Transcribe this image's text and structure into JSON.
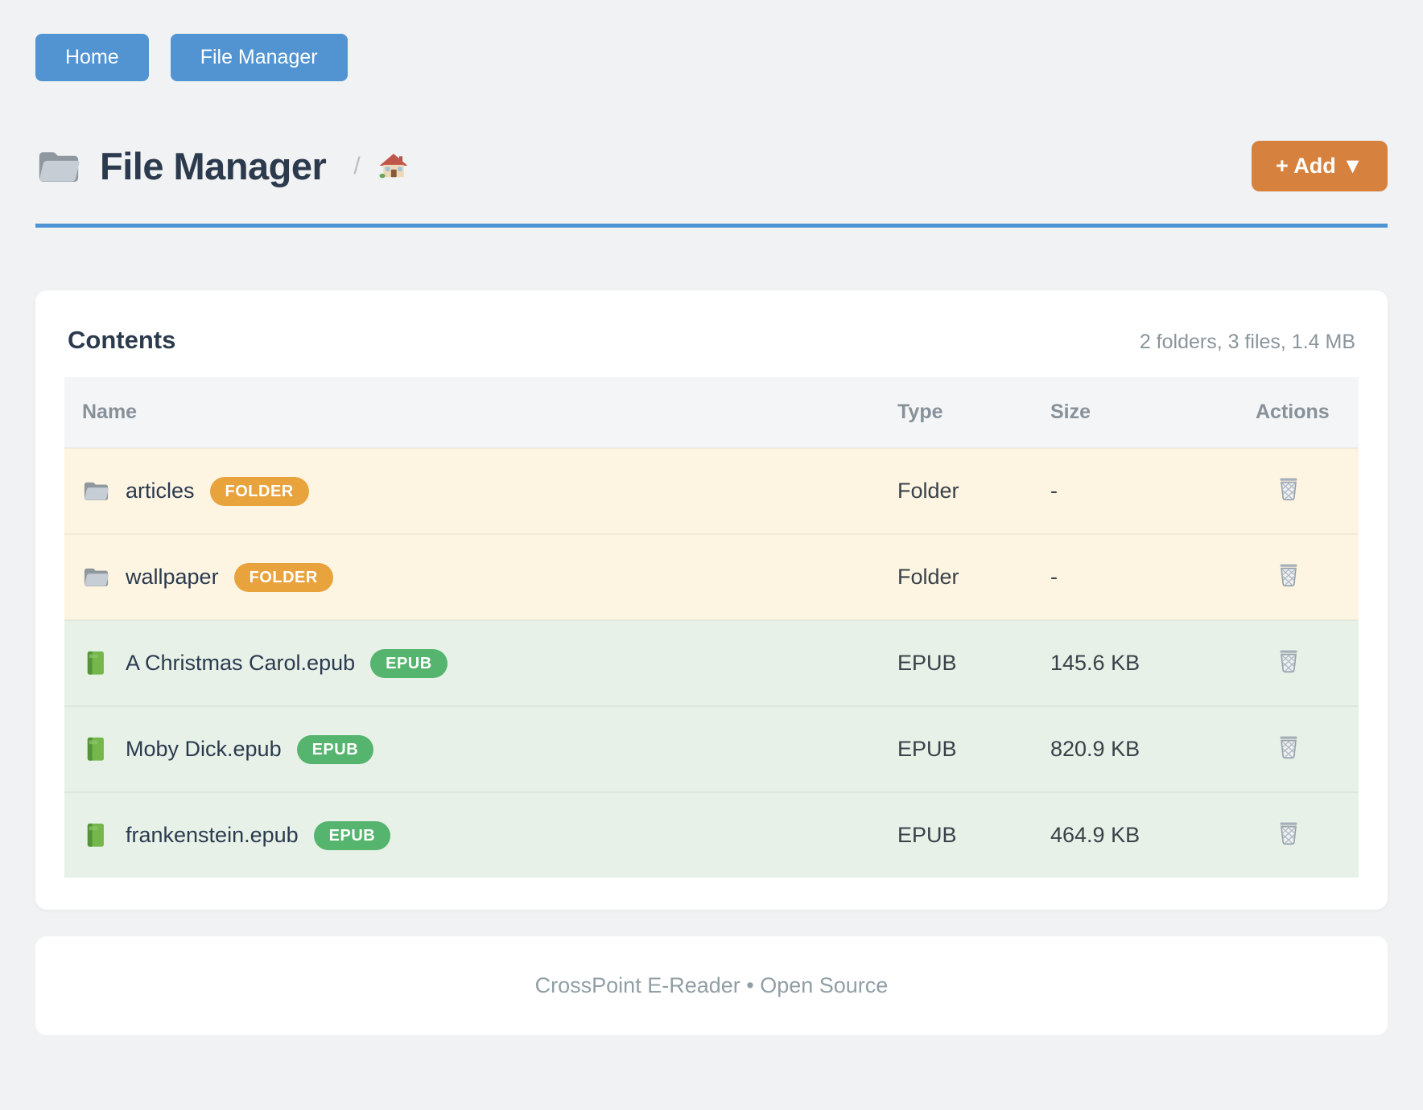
{
  "nav": {
    "buttons": [
      {
        "label": "Home"
      },
      {
        "label": "File Manager"
      }
    ]
  },
  "header": {
    "icon": "folder",
    "title": "File Manager",
    "breadcrumb": {
      "separator": "/",
      "home_icon": "house"
    },
    "add_button": {
      "label": "+ Add ▼"
    }
  },
  "contents": {
    "heading": "Contents",
    "summary": "2 folders, 3 files, 1.4 MB",
    "columns": [
      "Name",
      "Type",
      "Size",
      "Actions"
    ],
    "action_icon": "trash",
    "rows": [
      {
        "icon": "folder",
        "kind": "folder",
        "name": "articles",
        "badge": "FOLDER",
        "type": "Folder",
        "size": "-"
      },
      {
        "icon": "folder",
        "kind": "folder",
        "name": "wallpaper",
        "badge": "FOLDER",
        "type": "Folder",
        "size": "-"
      },
      {
        "icon": "book",
        "kind": "epub",
        "name": "A Christmas Carol.epub",
        "badge": "EPUB",
        "type": "EPUB",
        "size": "145.6 KB"
      },
      {
        "icon": "book",
        "kind": "epub",
        "name": "Moby Dick.epub",
        "badge": "EPUB",
        "type": "EPUB",
        "size": "820.9 KB"
      },
      {
        "icon": "book",
        "kind": "epub",
        "name": "frankenstein.epub",
        "badge": "EPUB",
        "type": "EPUB",
        "size": "464.9 KB"
      }
    ]
  },
  "footer": {
    "text": "CrossPoint E-Reader • Open Source"
  },
  "colors": {
    "nav_button": "#5294d2",
    "add_button": "#d6813e",
    "rule": "#4d94d6",
    "badge_folder": "#e8a33c",
    "badge_epub": "#55b46d",
    "row_folder_bg": "#fdf5e2",
    "row_epub_bg": "#e7f1e8"
  }
}
